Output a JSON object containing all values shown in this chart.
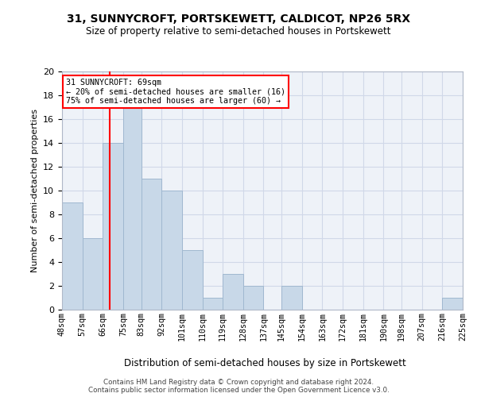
{
  "title1": "31, SUNNYCROFT, PORTSKEWETT, CALDICOT, NP26 5RX",
  "title2": "Size of property relative to semi-detached houses in Portskewett",
  "xlabel": "Distribution of semi-detached houses by size in Portskewett",
  "ylabel": "Number of semi-detached properties",
  "bin_labels": [
    "48sqm",
    "57sqm",
    "66sqm",
    "75sqm",
    "83sqm",
    "92sqm",
    "101sqm",
    "110sqm",
    "119sqm",
    "128sqm",
    "137sqm",
    "145sqm",
    "154sqm",
    "163sqm",
    "172sqm",
    "181sqm",
    "190sqm",
    "198sqm",
    "207sqm",
    "216sqm",
    "225sqm"
  ],
  "bin_edges": [
    48,
    57,
    66,
    75,
    83,
    92,
    101,
    110,
    119,
    128,
    137,
    145,
    154,
    163,
    172,
    181,
    190,
    198,
    207,
    216,
    225
  ],
  "bar_heights": [
    9,
    6,
    14,
    17,
    11,
    10,
    5,
    1,
    3,
    2,
    0,
    2,
    0,
    0,
    0,
    0,
    0,
    0,
    0,
    1
  ],
  "bar_color": "#c8d8e8",
  "bar_edge_color": "#a0b8d0",
  "grid_color": "#d0d8e8",
  "property_size": 69,
  "property_line_color": "red",
  "annotation_line1": "31 SUNNYCROFT: 69sqm",
  "annotation_line2": "← 20% of semi-detached houses are smaller (16)",
  "annotation_line3": "75% of semi-detached houses are larger (60) →",
  "annotation_box_color": "white",
  "annotation_box_edge": "red",
  "footer1": "Contains HM Land Registry data © Crown copyright and database right 2024.",
  "footer2": "Contains public sector information licensed under the Open Government Licence v3.0.",
  "ylim": [
    0,
    20
  ],
  "yticks": [
    0,
    2,
    4,
    6,
    8,
    10,
    12,
    14,
    16,
    18,
    20
  ],
  "bg_color": "#eef2f8"
}
